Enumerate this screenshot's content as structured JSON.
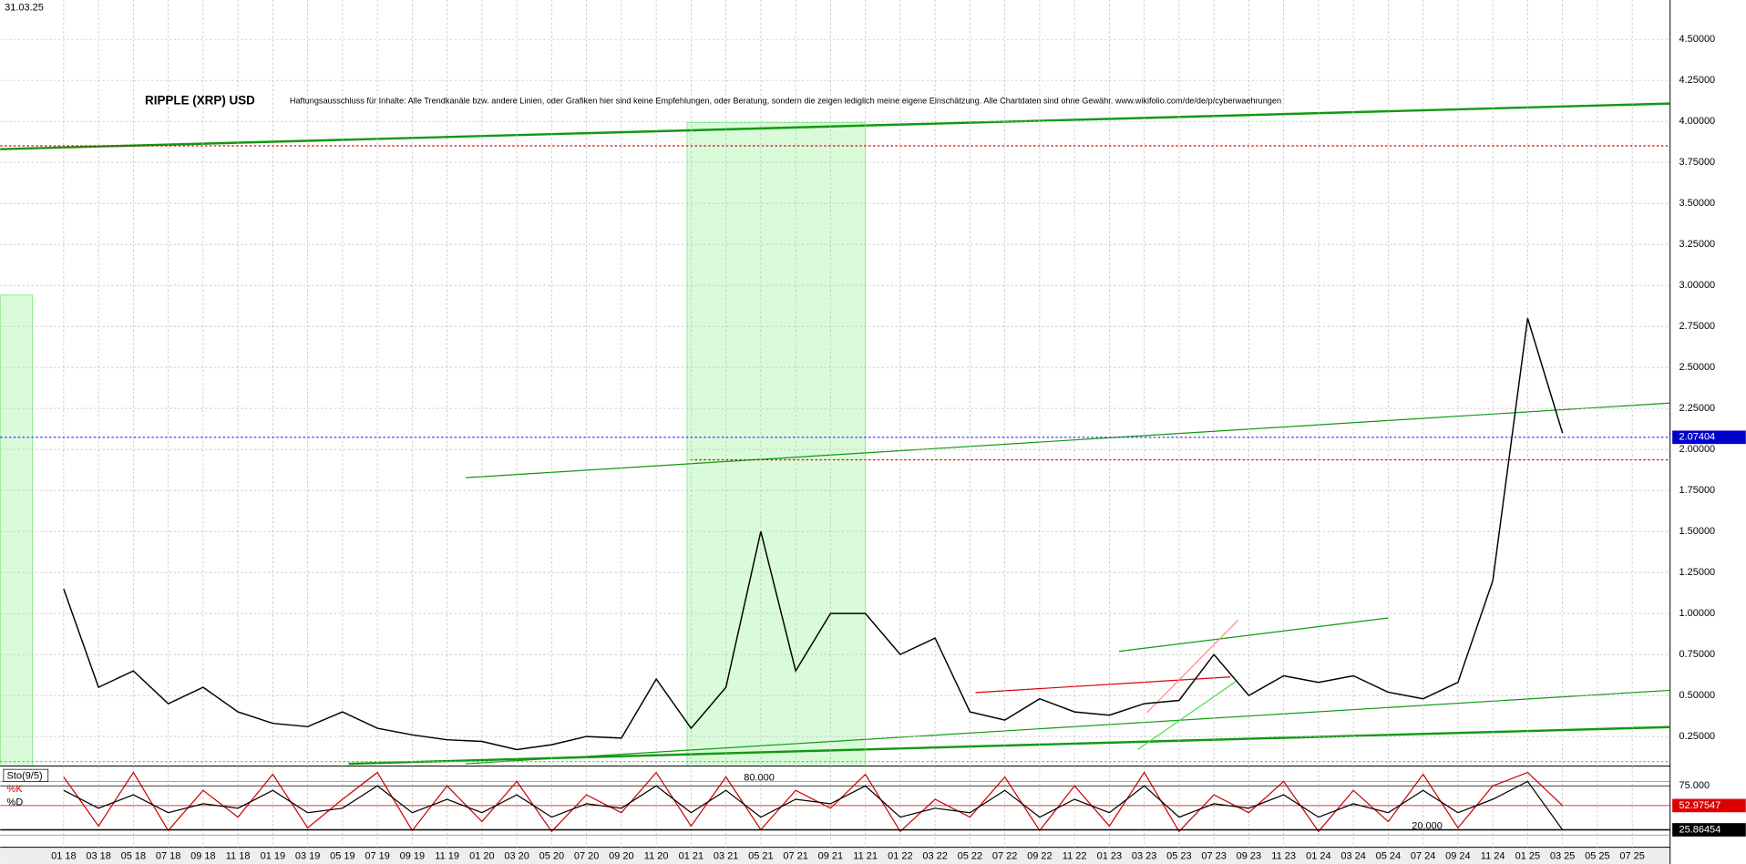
{
  "header": {
    "date": "31.03.25"
  },
  "chart_data": [
    {
      "type": "line",
      "title": "RIPPLE (XRP) USD",
      "subtitle": "Haftungsausschluss für Inhalte: Alle Trendkanäle bzw. andere Linien, oder Grafiken hier sind keine Empfehlungen, oder Beratung, sondern die zeigen lediglich meine eigene Einschätzung. Alle Chartdaten sind ohne Gewähr. www.wikifolio.com/de/de/p/cyberwaehrungen",
      "categories": [
        "01 18",
        "03 18",
        "05 18",
        "07 18",
        "09 18",
        "11 18",
        "01 19",
        "03 19",
        "05 19",
        "07 19",
        "09 19",
        "11 19",
        "01 20",
        "03 20",
        "05 20",
        "07 20",
        "09 20",
        "11 20",
        "01 21",
        "03 21",
        "05 21",
        "07 21",
        "09 21",
        "11 21",
        "01 22",
        "03 22",
        "05 22",
        "07 22",
        "09 22",
        "11 22",
        "01 23",
        "03 23",
        "05 23",
        "07 23",
        "09 23",
        "11 23",
        "01 24",
        "03 24",
        "05 24",
        "07 24",
        "09 24",
        "11 24",
        "01 25",
        "03 25",
        "05 25",
        "07 25"
      ],
      "series": [
        {
          "name": "XRP",
          "color": "#000000",
          "values": [
            1.15,
            0.55,
            0.65,
            0.45,
            0.55,
            0.4,
            0.33,
            0.31,
            0.4,
            0.3,
            0.26,
            0.23,
            0.22,
            0.17,
            0.2,
            0.25,
            0.24,
            0.6,
            0.3,
            0.55,
            1.5,
            0.65,
            1.0,
            1.0,
            0.75,
            0.85,
            0.4,
            0.35,
            0.48,
            0.4,
            0.38,
            0.45,
            0.47,
            0.75,
            0.5,
            0.62,
            0.58,
            0.62,
            0.52,
            0.48,
            0.58,
            1.2,
            2.8,
            2.1,
            null,
            null
          ]
        }
      ],
      "current_price": 2.07404,
      "ylim": [
        0.07,
        4.74
      ],
      "yticks": [
        {
          "value": 0.25,
          "label": "0.25000"
        },
        {
          "value": 0.5,
          "label": "0.50000"
        },
        {
          "value": 0.75,
          "label": "0.75000"
        },
        {
          "value": 1.0,
          "label": "1.00000"
        },
        {
          "value": 1.25,
          "label": "1.25000"
        },
        {
          "value": 1.5,
          "label": "1.50000"
        },
        {
          "value": 1.75,
          "label": "1.75000"
        },
        {
          "value": 2.0,
          "label": "2.00000"
        },
        {
          "value": 2.25,
          "label": "2.25000"
        },
        {
          "value": 2.5,
          "label": "2.50000"
        },
        {
          "value": 2.75,
          "label": "2.75000"
        },
        {
          "value": 3.0,
          "label": "3.00000"
        },
        {
          "value": 3.25,
          "label": "3.25000"
        },
        {
          "value": 3.5,
          "label": "3.50000"
        },
        {
          "value": 3.75,
          "label": "3.75000"
        },
        {
          "value": 4.0,
          "label": "4.00000"
        },
        {
          "value": 4.25,
          "label": "4.25000"
        },
        {
          "value": 4.5,
          "label": "4.50000"
        }
      ],
      "grid": true
    },
    {
      "type": "oscillator",
      "title": "Sto(9/5)",
      "series": [
        {
          "name": "%K",
          "color": "#cc0000",
          "values": [
            85,
            30,
            90,
            25,
            70,
            40,
            88,
            28,
            60,
            90,
            25,
            75,
            35,
            80,
            24,
            65,
            45,
            90,
            30,
            85,
            26,
            70,
            50,
            88,
            24,
            60,
            40,
            85,
            25,
            75,
            30,
            90,
            24,
            65,
            45,
            80,
            24,
            70,
            35,
            88,
            28,
            75,
            90,
            52.97547,
            null,
            null
          ],
          "value_labels": [
            null,
            null,
            null,
            null,
            null,
            null,
            null,
            null,
            null,
            null,
            null,
            null,
            null,
            null,
            null,
            null,
            null,
            null,
            null,
            null,
            null,
            null,
            null,
            null,
            null,
            null,
            null,
            null,
            null,
            null,
            null,
            null,
            null,
            null,
            null,
            null,
            null,
            null,
            null,
            null,
            null,
            null,
            null,
            "52.97547",
            null,
            null
          ]
        },
        {
          "name": "%D",
          "color": "#000000",
          "values": [
            70,
            50,
            65,
            45,
            55,
            50,
            70,
            45,
            50,
            75,
            45,
            60,
            45,
            65,
            40,
            55,
            50,
            75,
            45,
            70,
            40,
            60,
            55,
            75,
            40,
            50,
            45,
            70,
            40,
            60,
            45,
            75,
            40,
            55,
            50,
            65,
            40,
            55,
            45,
            70,
            45,
            60,
            80,
            25.86454,
            null,
            null
          ],
          "value_labels": [
            null,
            null,
            null,
            null,
            null,
            null,
            null,
            null,
            null,
            null,
            null,
            null,
            null,
            null,
            null,
            null,
            null,
            null,
            null,
            null,
            null,
            null,
            null,
            null,
            null,
            null,
            null,
            null,
            null,
            null,
            null,
            null,
            null,
            null,
            null,
            null,
            null,
            null,
            null,
            null,
            null,
            null,
            null,
            "25.86454",
            null,
            null
          ]
        }
      ],
      "ylim": [
        20,
        91
      ],
      "yticks": [
        {
          "value": 75,
          "label": "75.000"
        }
      ],
      "levels": [
        {
          "value": 80,
          "label": "80.000"
        },
        {
          "value": 20,
          "label": "20.000"
        }
      ]
    }
  ]
}
